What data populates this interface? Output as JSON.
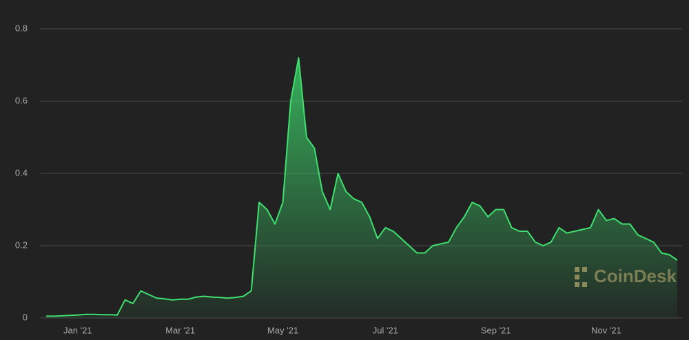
{
  "chart_data": {
    "type": "area",
    "categories": [
      null,
      null,
      null,
      null,
      "Jan '21",
      null,
      null,
      null,
      null,
      null,
      null,
      null,
      null,
      null,
      null,
      null,
      null,
      "Mar '21",
      null,
      null,
      null,
      null,
      null,
      null,
      null,
      null,
      null,
      null,
      null,
      null,
      "May '21",
      null,
      null,
      null,
      null,
      null,
      null,
      null,
      null,
      null,
      null,
      null,
      null,
      "Jul '21",
      null,
      null,
      null,
      null,
      null,
      null,
      null,
      null,
      null,
      null,
      null,
      null,
      null,
      "Sep '21",
      null,
      null,
      null,
      null,
      null,
      null,
      null,
      null,
      null,
      null,
      null,
      null,
      null,
      "Nov '21",
      null,
      null,
      null,
      null,
      null,
      null,
      null,
      null,
      null
    ],
    "values": [
      0.005,
      0.005,
      0.006,
      0.007,
      0.008,
      0.01,
      0.01,
      0.009,
      0.009,
      0.008,
      0.05,
      0.04,
      0.075,
      0.065,
      0.055,
      0.053,
      0.05,
      0.052,
      0.052,
      0.058,
      0.06,
      0.058,
      0.057,
      0.055,
      0.057,
      0.06,
      0.075,
      0.32,
      0.3,
      0.26,
      0.32,
      0.6,
      0.72,
      0.5,
      0.47,
      0.35,
      0.3,
      0.4,
      0.35,
      0.33,
      0.32,
      0.28,
      0.22,
      0.25,
      0.24,
      0.22,
      0.2,
      0.18,
      0.18,
      0.2,
      0.205,
      0.21,
      0.25,
      0.28,
      0.32,
      0.31,
      0.28,
      0.3,
      0.3,
      0.25,
      0.24,
      0.24,
      0.21,
      0.2,
      0.21,
      0.25,
      0.235,
      0.24,
      0.245,
      0.25,
      0.3,
      0.27,
      0.275,
      0.26,
      0.26,
      0.23,
      0.22,
      0.21,
      0.18,
      0.175,
      0.16
    ],
    "color": "#3ee06f",
    "ylim": [
      0,
      0.8
    ],
    "yticks": [
      0,
      0.2,
      0.4,
      0.6,
      0.8
    ],
    "grid": true,
    "watermark": "CoinDesk"
  }
}
